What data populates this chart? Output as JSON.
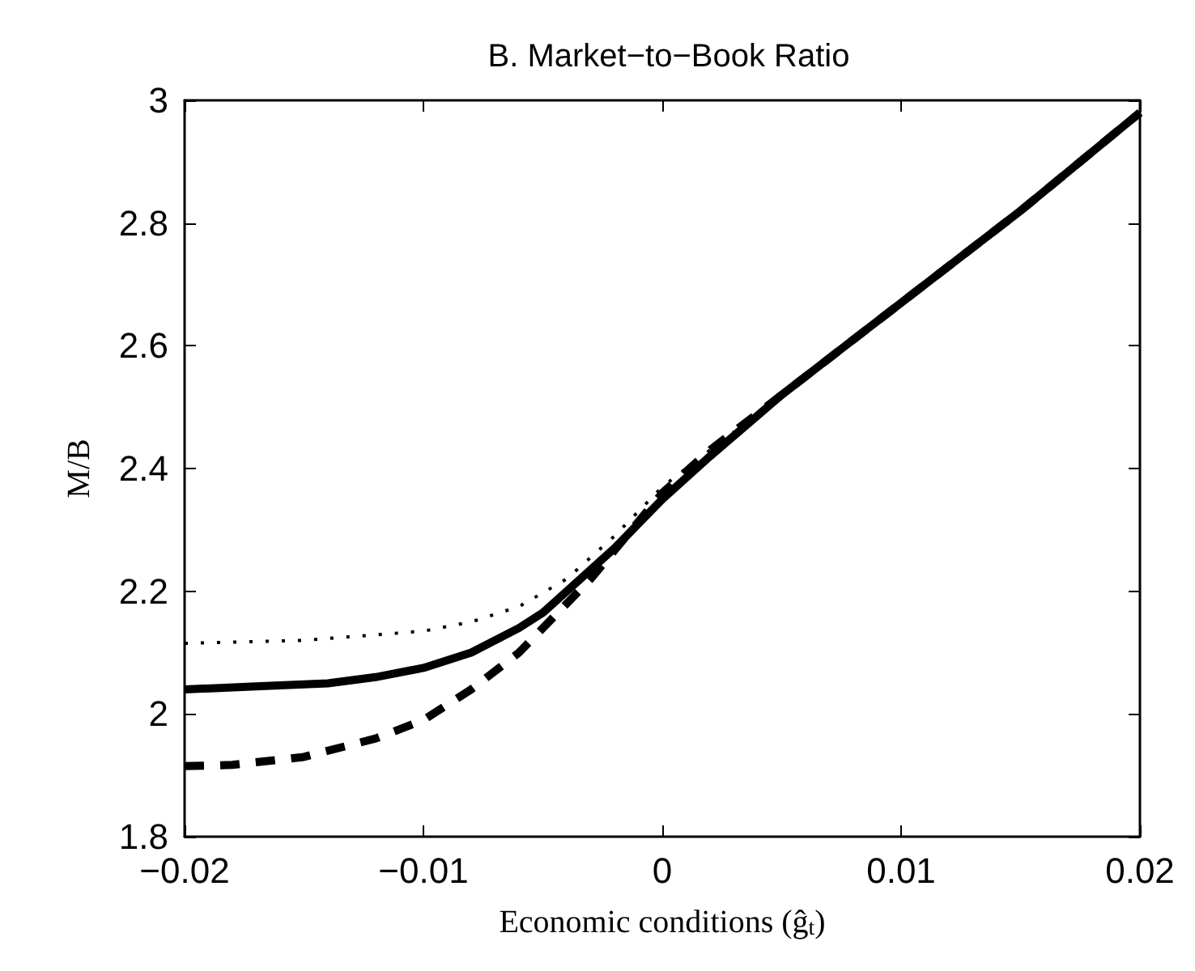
{
  "chart_data": {
    "type": "line",
    "title": "B. Market−to−Book Ratio",
    "xlabel": "Economic conditions (ĝ$_{t}$)",
    "ylabel": "M/B",
    "xlim": [
      -0.02,
      0.02
    ],
    "xticks": [
      {
        "value": -0.02,
        "label": "−0.02"
      },
      {
        "value": -0.01,
        "label": "−0.01"
      },
      0,
      0.01,
      0.02
    ],
    "ylim": [
      1.8,
      3
    ],
    "yticks": [
      1.8,
      2,
      2.2,
      2.4,
      2.6,
      2.8,
      3
    ],
    "grid": false,
    "marker": "none",
    "series": [
      {
        "color": "#000000",
        "line_style": "dotted",
        "x": [
          -0.02,
          -0.015,
          -0.01,
          -0.008,
          -0.006,
          -0.004,
          -0.002,
          0,
          0.003
        ],
        "values": [
          2.115,
          2.12,
          2.135,
          2.15,
          2.175,
          2.22,
          2.29,
          2.37,
          2.46
        ]
      },
      {
        "color": "#000000",
        "line_style": "dashed",
        "x": [
          -0.02,
          -0.018,
          -0.015,
          -0.012,
          -0.01,
          -0.008,
          -0.006,
          -0.005,
          -0.003,
          -0.0015,
          0,
          0.002,
          0.005,
          0.01,
          0.015,
          0.02
        ],
        "values": [
          1.915,
          1.917,
          1.93,
          1.96,
          1.99,
          2.04,
          2.1,
          2.14,
          2.22,
          2.29,
          2.36,
          2.43,
          2.52,
          2.67,
          2.82,
          2.98
        ]
      },
      {
        "color": "#000000",
        "line_style": "solid",
        "x": [
          -0.02,
          -0.017,
          -0.014,
          -0.012,
          -0.01,
          -0.008,
          -0.006,
          -0.005,
          -0.004,
          -0.002,
          0,
          0.002,
          0.005,
          0.01,
          0.015,
          0.02
        ],
        "values": [
          2.04,
          2.045,
          2.05,
          2.06,
          2.075,
          2.1,
          2.14,
          2.165,
          2.2,
          2.27,
          2.35,
          2.42,
          2.52,
          2.67,
          2.82,
          2.98
        ]
      }
    ]
  }
}
